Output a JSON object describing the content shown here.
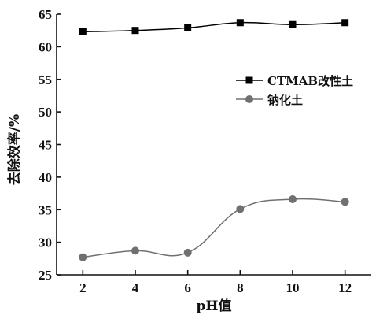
{
  "chart_data": {
    "type": "line",
    "title": "",
    "xlabel": "pH值",
    "ylabel": "去除效率/%",
    "x": [
      2,
      4,
      6,
      8,
      10,
      12
    ],
    "xlim": [
      1,
      13
    ],
    "ylim": [
      25,
      65
    ],
    "xticks": [
      2,
      4,
      6,
      8,
      10,
      12
    ],
    "yticks": [
      25,
      30,
      35,
      40,
      45,
      50,
      55,
      60,
      65
    ],
    "grid": false,
    "legend_position": "top-right",
    "series": [
      {
        "name": "CTMAB改性土",
        "marker": "square",
        "color": "#000000",
        "values": [
          62.3,
          62.5,
          62.9,
          63.7,
          63.4,
          63.7
        ]
      },
      {
        "name": "钠化土",
        "marker": "circle",
        "color": "#707070",
        "values": [
          27.7,
          28.7,
          28.4,
          35.1,
          36.6,
          36.2
        ]
      }
    ]
  }
}
